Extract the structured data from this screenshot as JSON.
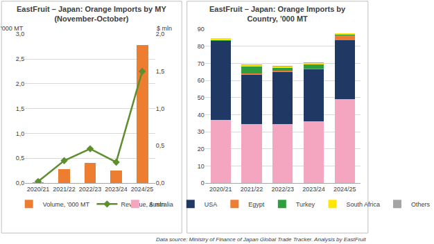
{
  "chart_data": [
    {
      "type": "bar",
      "title": "EastFruit – Japan: Orange Imports by MY\n(November-October)",
      "ylabel": "'000 MT",
      "y2label": "$ mln",
      "categories": [
        "2020/21",
        "2021/22",
        "2022/23",
        "2023/24",
        "2024/25"
      ],
      "series": [
        {
          "name": "Volume, '000 MT",
          "type": "bar",
          "color": "#ED7D31",
          "values": [
            0.02,
            0.28,
            0.4,
            0.25,
            2.78
          ]
        },
        {
          "name": "Revenue, $ mln",
          "type": "line",
          "color": "#5E8E2E",
          "marker": "diamond",
          "axis": "y2",
          "values": [
            0.02,
            0.3,
            0.46,
            0.28,
            1.5
          ]
        }
      ],
      "ylim": [
        0,
        3
      ],
      "yticks": [
        {
          "value": 0,
          "label": "0,0"
        },
        {
          "value": 0.5,
          "label": "0,5"
        },
        {
          "value": 1,
          "label": "1,0"
        },
        {
          "value": 1.5,
          "label": "1,5"
        },
        {
          "value": 2,
          "label": "2,0"
        },
        {
          "value": 2.5,
          "label": "2,5"
        },
        {
          "value": 3,
          "label": "3,0"
        }
      ],
      "y2lim": [
        0,
        2
      ],
      "y2ticks": [
        {
          "value": 0,
          "label": "0,0"
        },
        {
          "value": 0.5,
          "label": "0,5"
        },
        {
          "value": 1,
          "label": "1,0"
        },
        {
          "value": 1.5,
          "label": "1,5"
        },
        {
          "value": 2,
          "label": "2,0"
        }
      ],
      "grid": true,
      "legend": "bottom"
    },
    {
      "type": "bar",
      "title": "EastFruit – Japan: Orange Imports by\nCountry, '000 MT",
      "categories": [
        "2020/21",
        "2021/22",
        "2022/23",
        "2023/24",
        "2024/25"
      ],
      "series": [
        {
          "name": "Australia",
          "color": "#F4A6C0",
          "values": [
            37,
            34.5,
            34.5,
            36,
            49
          ]
        },
        {
          "name": "USA",
          "color": "#1F3864",
          "values": [
            46,
            29,
            30.5,
            30.5,
            34.5
          ]
        },
        {
          "name": "Egypt",
          "color": "#ED7D31",
          "values": [
            0.3,
            0.8,
            0.7,
            0.5,
            2.8
          ]
        },
        {
          "name": "Turkey",
          "color": "#2E9E3E",
          "values": [
            0.2,
            3.7,
            1.8,
            2.5,
            0.7
          ]
        },
        {
          "name": "South Africa",
          "color": "#FFE600",
          "values": [
            1.3,
            1,
            0.8,
            0.8,
            0.5
          ]
        },
        {
          "name": "Others",
          "color": "#A5A5A5",
          "values": [
            0.2,
            0.2,
            0.2,
            0.2,
            0.3
          ]
        }
      ],
      "stacked": true,
      "ylim": [
        0,
        90
      ],
      "yticks": [
        0,
        10,
        20,
        30,
        40,
        50,
        60,
        70,
        80,
        90
      ],
      "grid": true,
      "legend": "bottom",
      "annotations": [
        "Data source: Ministry of Finance of Japan Global Trade Tracker. Analysis by EastFruit"
      ]
    }
  ]
}
